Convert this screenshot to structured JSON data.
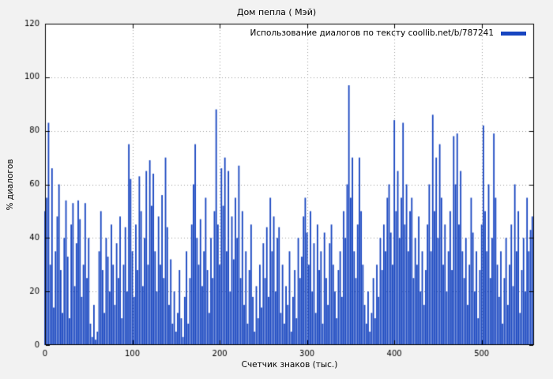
{
  "chart_data": {
    "type": "bar",
    "title": "Дом пепла ( Мэй)",
    "xlabel": "Счетчик знаков (тыс.)",
    "ylabel": "% диалогов",
    "legend": {
      "label": "Использование диалогов по тексту coollib.net/b/787241",
      "position": "top-right"
    },
    "bar_color": "#1745c0",
    "grid": true,
    "xlim": [
      0,
      560
    ],
    "ylim": [
      0,
      120
    ],
    "x_ticks": [
      0,
      100,
      200,
      300,
      400,
      500
    ],
    "y_ticks": [
      0,
      20,
      40,
      60,
      80,
      100,
      120
    ],
    "x_start": 0,
    "x_step": 2,
    "values": [
      50,
      55,
      83,
      30,
      66,
      14,
      35,
      48,
      60,
      28,
      12,
      40,
      54,
      33,
      10,
      45,
      53,
      22,
      38,
      54,
      47,
      18,
      30,
      53,
      25,
      40,
      8,
      3,
      15,
      2,
      5,
      35,
      50,
      28,
      12,
      40,
      33,
      20,
      45,
      30,
      15,
      38,
      25,
      48,
      10,
      30,
      44,
      20,
      75,
      62,
      35,
      18,
      45,
      28,
      63,
      50,
      22,
      40,
      65,
      30,
      69,
      52,
      64,
      35,
      20,
      48,
      30,
      56,
      25,
      70,
      44,
      15,
      32,
      8,
      20,
      5,
      12,
      28,
      10,
      3,
      18,
      35,
      8,
      25,
      45,
      60,
      75,
      40,
      30,
      47,
      22,
      35,
      55,
      28,
      12,
      40,
      25,
      50,
      88,
      45,
      30,
      66,
      52,
      70,
      35,
      65,
      20,
      48,
      32,
      55,
      40,
      67,
      25,
      50,
      15,
      35,
      8,
      28,
      45,
      18,
      5,
      22,
      10,
      30,
      14,
      38,
      25,
      44,
      18,
      55,
      35,
      48,
      20,
      40,
      44,
      12,
      30,
      8,
      22,
      15,
      35,
      5,
      18,
      28,
      10,
      40,
      25,
      33,
      48,
      55,
      42,
      30,
      50,
      20,
      38,
      12,
      45,
      28,
      35,
      8,
      42,
      25,
      15,
      38,
      45,
      30,
      20,
      10,
      28,
      35,
      18,
      50,
      40,
      60,
      97,
      55,
      70,
      35,
      25,
      45,
      70,
      50,
      30,
      15,
      8,
      20,
      5,
      12,
      25,
      10,
      30,
      18,
      40,
      28,
      45,
      35,
      55,
      60,
      42,
      30,
      84,
      50,
      65,
      40,
      55,
      83,
      45,
      60,
      35,
      50,
      55,
      25,
      40,
      30,
      48,
      20,
      35,
      15,
      28,
      45,
      60,
      35,
      86,
      50,
      70,
      40,
      75,
      55,
      30,
      45,
      20,
      35,
      50,
      28,
      78,
      60,
      79,
      45,
      65,
      35,
      25,
      40,
      15,
      30,
      55,
      42,
      20,
      35,
      10,
      28,
      45,
      82,
      50,
      35,
      60,
      25,
      40,
      79,
      55,
      30,
      18,
      35,
      8,
      25,
      40,
      15,
      30,
      45,
      22,
      60,
      35,
      50,
      12,
      28,
      40,
      20,
      55,
      35,
      43,
      48
    ]
  }
}
